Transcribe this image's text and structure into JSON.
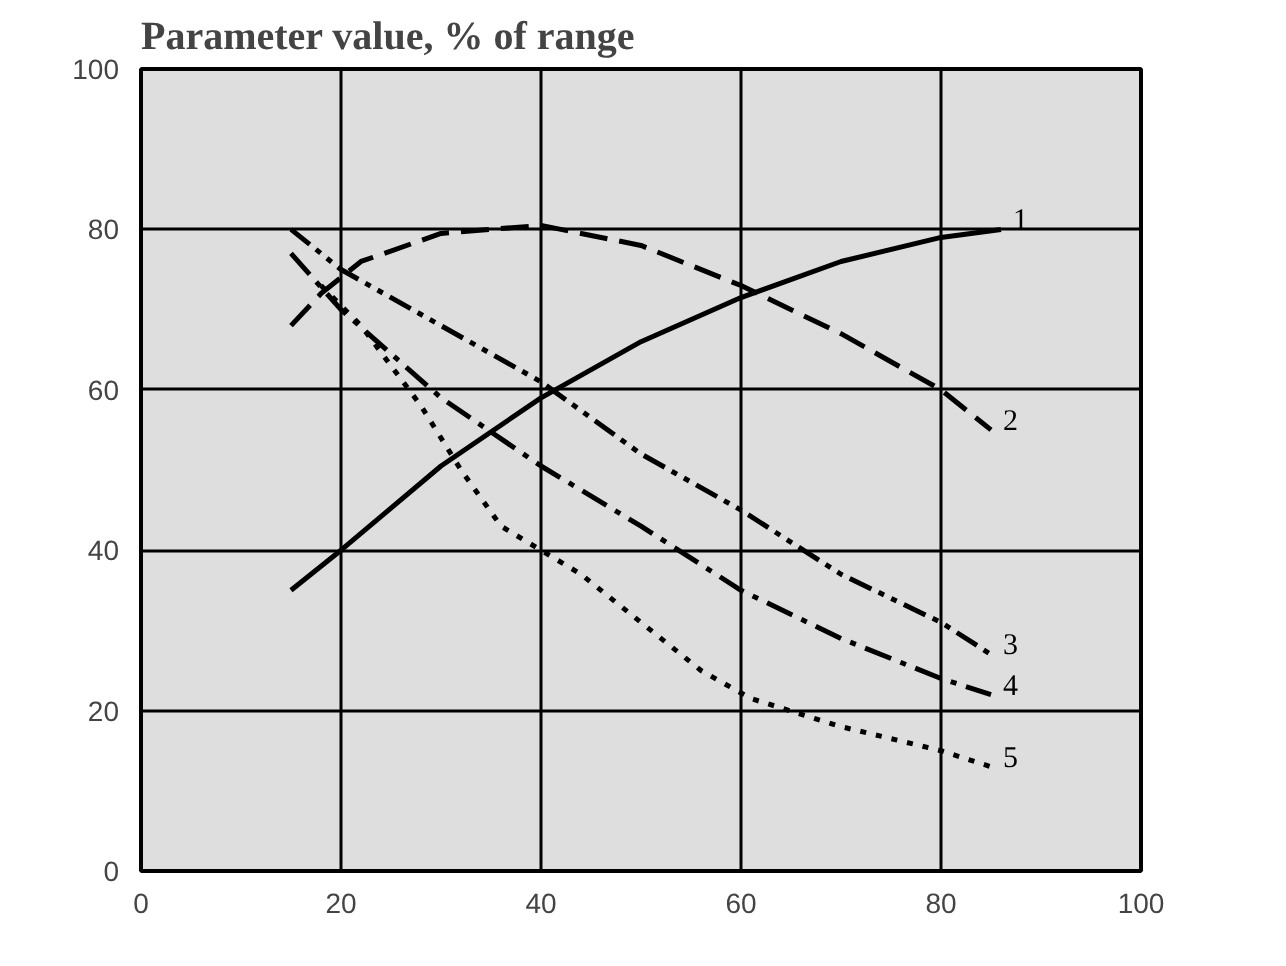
{
  "chart_data": {
    "type": "line",
    "title": "Parameter value, % of range",
    "xlim": [
      0,
      100
    ],
    "ylim": [
      0,
      100
    ],
    "xticks": [
      0,
      20,
      40,
      60,
      80,
      100
    ],
    "yticks": [
      0,
      20,
      40,
      60,
      80,
      100
    ],
    "grid": true,
    "marker": "none",
    "series": [
      {
        "name": "1",
        "color": "#000000",
        "line_style": "solid",
        "x": [
          15,
          20,
          30,
          40,
          50,
          60,
          70,
          80,
          86
        ],
        "values": [
          35,
          40,
          50.5,
          59,
          66,
          71.5,
          76,
          79,
          80
        ]
      },
      {
        "name": "2",
        "color": "#000000",
        "line_style": "dashed",
        "x": [
          15,
          18,
          22,
          30,
          40,
          50,
          60,
          70,
          80,
          85
        ],
        "values": [
          68,
          72,
          76,
          79.5,
          80.5,
          78,
          73,
          67,
          60,
          55
        ]
      },
      {
        "name": "3",
        "color": "#000000",
        "line_style": "dashdotdot",
        "x": [
          15,
          20,
          30,
          40,
          50,
          60,
          70,
          80,
          85
        ],
        "values": [
          80,
          75,
          68,
          61,
          52,
          45,
          37,
          31,
          27
        ]
      },
      {
        "name": "4",
        "color": "#000000",
        "line_style": "dashdot",
        "x": [
          15,
          20,
          30,
          40,
          50,
          60,
          70,
          80,
          85
        ],
        "values": [
          77,
          70,
          59,
          50.5,
          43,
          35,
          29,
          24,
          22
        ]
      },
      {
        "name": "5",
        "color": "#000000",
        "line_style": "dotted",
        "x": [
          18,
          22,
          28,
          32,
          36,
          44,
          50,
          56,
          61,
          70,
          80,
          85
        ],
        "values": [
          73,
          68,
          58,
          50,
          43,
          37,
          31,
          25,
          21.5,
          18,
          15,
          13
        ]
      }
    ]
  }
}
